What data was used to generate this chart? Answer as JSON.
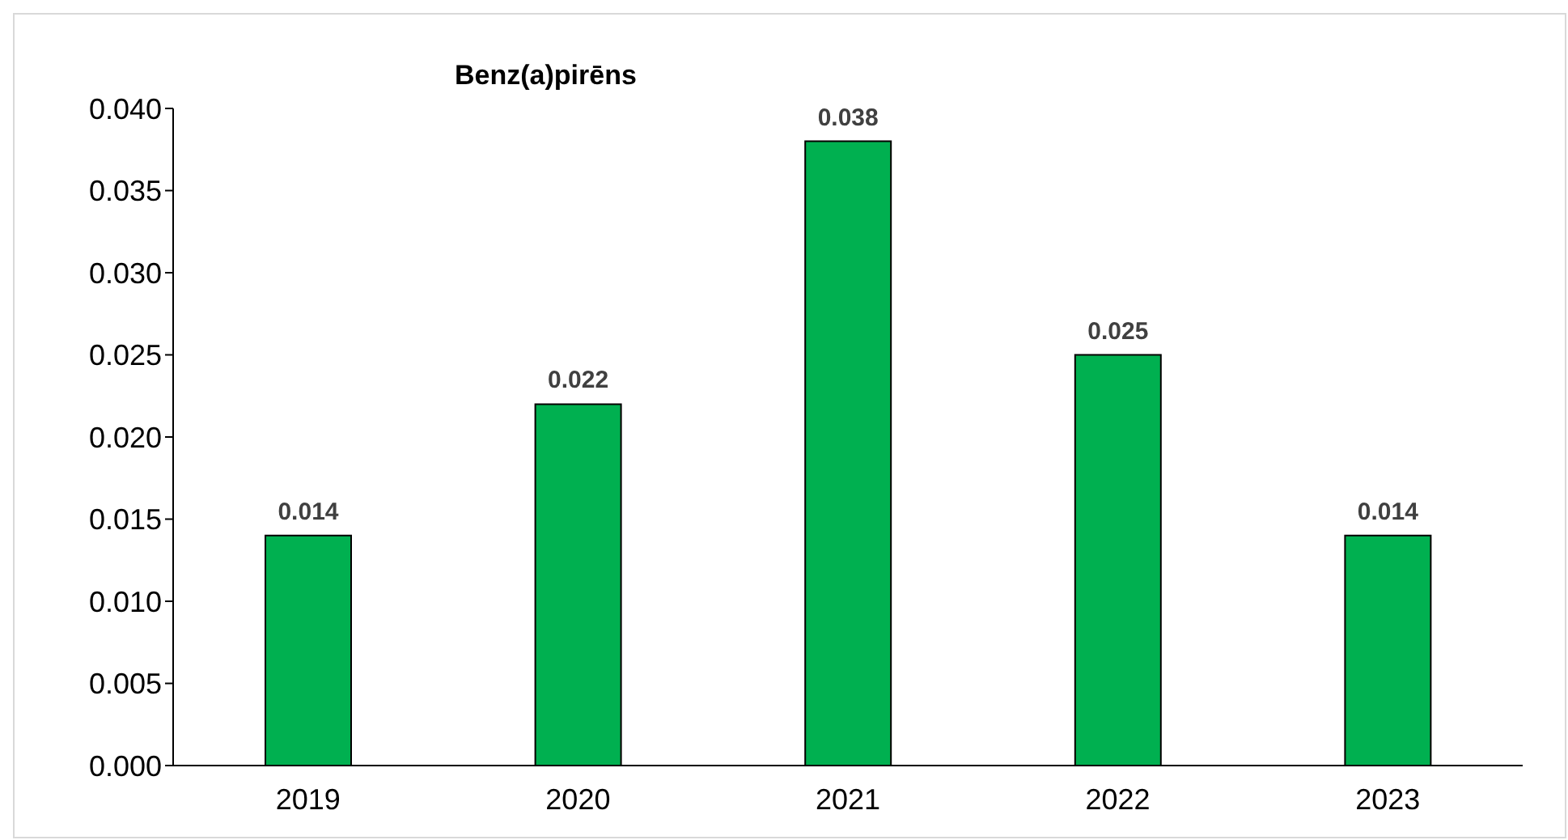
{
  "chart_data": {
    "type": "bar",
    "title": "Benz(a)pirēns",
    "categories": [
      "2019",
      "2020",
      "2021",
      "2022",
      "2023"
    ],
    "values": [
      0.014,
      0.022,
      0.038,
      0.025,
      0.014
    ],
    "color": "#00b050",
    "ylim": [
      0,
      0.04
    ],
    "yticks": [
      "0.000",
      "0.005",
      "0.010",
      "0.015",
      "0.020",
      "0.025",
      "0.030",
      "0.035",
      "0.040"
    ],
    "grid": false,
    "legend": false,
    "data_labels": true
  }
}
